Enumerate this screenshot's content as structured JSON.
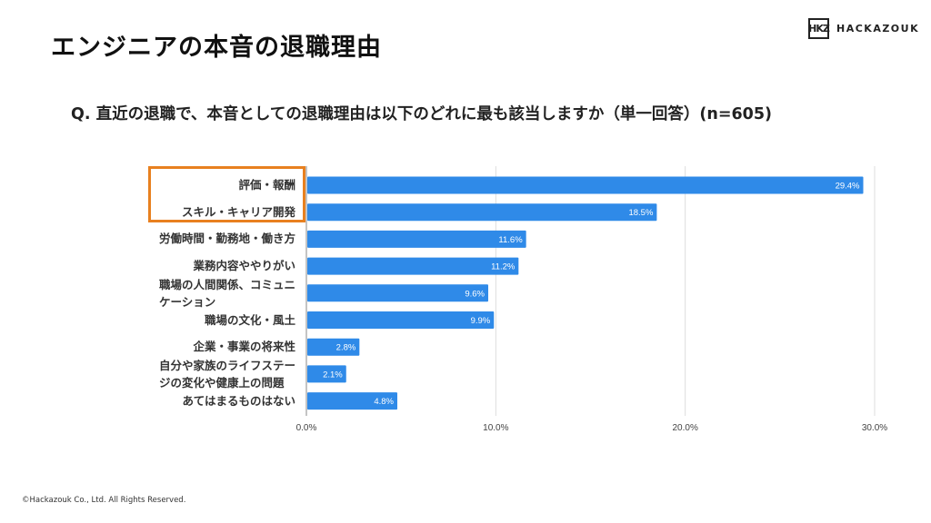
{
  "title": "エンジニアの本音の退職理由",
  "question": "Q.  直近の退職で、本音としての退職理由は以下のどれに最も該当しますか（単一回答）(n=605)",
  "logo": {
    "mark": "HKZ",
    "text": "HACKAZOUK"
  },
  "footer": "©Hackazouk Co., Ltd. All Rights Reserved.",
  "highlight_color": "#e8801f",
  "chart_data": {
    "type": "bar",
    "orientation": "horizontal",
    "categories": [
      "評価・報酬",
      "スキル・キャリア開発",
      "労働時間・勤務地・働き方",
      "業務内容ややりがい",
      "職場の人間関係、コミュニケーション",
      "職場の文化・風土",
      "企業・事業の将来性",
      "自分や家族のライフステージの変化や健康上の問題",
      "あてはまるものはない"
    ],
    "values": [
      29.4,
      18.5,
      11.6,
      11.2,
      9.6,
      9.9,
      2.8,
      2.1,
      4.8
    ],
    "data_labels": [
      "29.4%",
      "18.5%",
      "11.6%",
      "11.2%",
      "9.6%",
      "9.9%",
      "2.8%",
      "2.1%",
      "4.8%"
    ],
    "xlim": [
      0,
      30
    ],
    "xticks": [
      "0.0%",
      "10.0%",
      "20.0%",
      "30.0%"
    ],
    "grid": true,
    "bar_color": "#2f8ae8",
    "highlighted_categories": [
      "評価・報酬",
      "スキル・キャリア開発"
    ]
  }
}
